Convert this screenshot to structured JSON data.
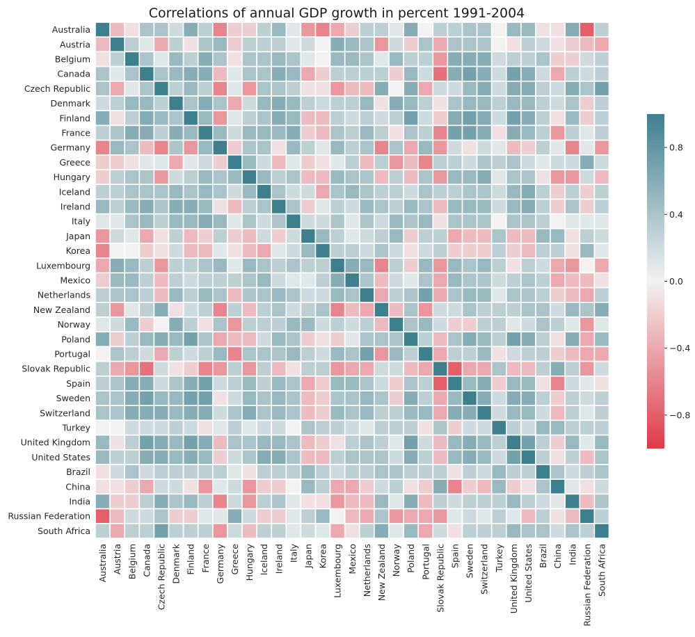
{
  "chart_data": {
    "type": "heatmap",
    "title": "Correlations of annual GDP growth in percent 1991-2004",
    "xlabel": "",
    "ylabel": "",
    "labels": [
      "Australia",
      "Austria",
      "Belgium",
      "Canada",
      "Czech Republic",
      "Denmark",
      "Finland",
      "France",
      "Germany",
      "Greece",
      "Hungary",
      "Iceland",
      "Ireland",
      "Italy",
      "Japan",
      "Korea",
      "Luxembourg",
      "Mexico",
      "Netherlands",
      "New Zealand",
      "Norway",
      "Poland",
      "Portugal",
      "Slovak Republic",
      "Spain",
      "Sweden",
      "Switzerland",
      "Turkey",
      "United Kingdom",
      "United States",
      "Brazil",
      "China",
      "India",
      "Russian Federation",
      "South Africa"
    ],
    "value_range": [
      -1,
      1
    ],
    "colorbar": {
      "ticks": [
        0.8,
        0.4,
        0.0,
        -0.4,
        -0.8
      ],
      "tick_labels": [
        "0.8",
        "0.4",
        "0.0",
        "−0.4",
        "−0.8"
      ]
    },
    "colors": {
      "positive": "#3e7f8e",
      "neutral": "#f2f2f2",
      "negative": "#e03a48",
      "grid": "#ffffff"
    },
    "matrix": [
      [
        1.0,
        -0.3,
        -0.1,
        0.4,
        0.4,
        0.2,
        0.6,
        0.3,
        -0.6,
        -0.2,
        -0.2,
        0.3,
        0.5,
        0.1,
        -0.5,
        -0.6,
        -0.4,
        -0.2,
        0.3,
        0.3,
        0.1,
        0.6,
        0.0,
        0.3,
        0.3,
        0.4,
        0.4,
        0.0,
        0.5,
        0.5,
        -0.1,
        -0.1,
        0.6,
        -0.8,
        0.3
      ],
      [
        -0.3,
        1.0,
        0.3,
        0.1,
        -0.4,
        0.3,
        -0.1,
        0.4,
        0.5,
        -0.2,
        0.3,
        0.3,
        0.3,
        0.1,
        0.2,
        0.0,
        0.6,
        0.5,
        0.4,
        -0.5,
        0.2,
        -0.2,
        0.4,
        -0.4,
        0.4,
        0.4,
        0.4,
        0.0,
        -0.1,
        0.3,
        0.2,
        -0.1,
        -0.2,
        -0.3,
        -0.4
      ],
      [
        -0.1,
        0.3,
        1.0,
        0.4,
        0.1,
        0.5,
        0.3,
        0.6,
        0.4,
        -0.1,
        0.4,
        0.4,
        0.5,
        0.4,
        0.1,
        0.0,
        0.5,
        0.5,
        0.4,
        0.1,
        0.5,
        0.3,
        0.3,
        -0.5,
        0.6,
        0.6,
        0.6,
        0.2,
        0.3,
        0.3,
        0.4,
        -0.2,
        -0.2,
        0.2,
        0.3
      ],
      [
        0.4,
        0.1,
        0.4,
        1.0,
        0.4,
        0.5,
        0.6,
        0.6,
        -0.3,
        0.1,
        0.4,
        0.4,
        0.6,
        0.5,
        -0.4,
        -0.2,
        0.3,
        0.3,
        0.3,
        0.3,
        -0.2,
        0.5,
        0.2,
        -0.7,
        0.6,
        0.7,
        0.6,
        0.2,
        0.7,
        0.6,
        0.2,
        -0.4,
        0.3,
        0.2,
        0.3
      ],
      [
        0.4,
        -0.4,
        0.1,
        0.4,
        1.0,
        0.3,
        0.5,
        0.3,
        -0.6,
        0.1,
        -0.5,
        0.4,
        0.4,
        0.3,
        -0.1,
        -0.1,
        -0.5,
        -0.3,
        -0.3,
        0.6,
        0.0,
        0.6,
        -0.4,
        0.2,
        0.2,
        0.5,
        0.6,
        0.2,
        0.6,
        0.6,
        0.3,
        0.2,
        0.6,
        0.4,
        0.7
      ],
      [
        0.2,
        0.3,
        0.5,
        0.5,
        0.3,
        1.0,
        0.4,
        0.6,
        0.4,
        -0.4,
        0.2,
        0.5,
        0.6,
        0.5,
        0.3,
        0.2,
        0.3,
        0.3,
        0.5,
        -0.1,
        0.6,
        0.5,
        0.3,
        -0.1,
        0.4,
        0.5,
        0.5,
        0.3,
        0.5,
        0.5,
        0.3,
        0.2,
        0.4,
        -0.2,
        0.3
      ],
      [
        0.6,
        -0.1,
        0.3,
        0.6,
        0.5,
        0.4,
        1.0,
        0.5,
        -0.5,
        0.1,
        0.3,
        0.4,
        0.6,
        0.5,
        -0.3,
        -0.3,
        0.3,
        0.2,
        0.3,
        0.2,
        0.3,
        0.7,
        0.2,
        -0.2,
        0.6,
        0.7,
        0.6,
        0.2,
        0.7,
        0.6,
        0.3,
        -0.1,
        0.5,
        -0.2,
        0.3
      ],
      [
        0.3,
        0.4,
        0.6,
        0.6,
        0.3,
        0.6,
        0.5,
        1.0,
        0.5,
        0.2,
        0.5,
        0.5,
        0.5,
        0.6,
        -0.2,
        -0.3,
        0.4,
        0.3,
        0.5,
        0.3,
        -0.1,
        0.4,
        0.3,
        -0.6,
        0.7,
        0.7,
        0.6,
        -0.1,
        0.6,
        0.5,
        0.3,
        -0.5,
        0.3,
        0.1,
        0.3
      ],
      [
        -0.6,
        0.5,
        0.4,
        -0.3,
        -0.6,
        0.4,
        -0.5,
        0.5,
        1.0,
        -0.2,
        0.4,
        0.4,
        -0.1,
        0.5,
        0.3,
        0.1,
        0.5,
        0.3,
        0.4,
        -0.6,
        0.4,
        -0.4,
        0.5,
        -0.5,
        0.2,
        -0.1,
        0.2,
        0.1,
        -0.3,
        -0.2,
        0.3,
        0.1,
        -0.6,
        0.1,
        -0.5
      ],
      [
        -0.2,
        -0.2,
        -0.1,
        0.1,
        0.1,
        -0.4,
        0.1,
        0.2,
        -0.2,
        1.0,
        0.5,
        0.2,
        -0.3,
        0.1,
        -0.2,
        -0.1,
        0.1,
        0.3,
        -0.3,
        0.3,
        -0.5,
        -0.3,
        -0.6,
        0.3,
        0.3,
        0.2,
        0.4,
        0.3,
        0.4,
        0.2,
        0.1,
        0.2,
        0.2,
        0.6,
        0.2
      ],
      [
        -0.2,
        0.3,
        0.4,
        0.4,
        -0.5,
        0.2,
        0.3,
        0.5,
        0.4,
        0.5,
        1.0,
        0.5,
        0.3,
        0.4,
        -0.3,
        -0.3,
        0.5,
        0.4,
        0.4,
        -0.3,
        0.3,
        -0.3,
        0.4,
        -0.5,
        0.5,
        0.5,
        0.6,
        0.1,
        0.4,
        0.4,
        -0.1,
        -0.5,
        -0.5,
        0.2,
        -0.3
      ],
      [
        0.3,
        0.3,
        0.4,
        0.4,
        0.4,
        0.5,
        0.4,
        0.5,
        0.4,
        0.2,
        0.5,
        1.0,
        0.4,
        0.2,
        0.2,
        -0.4,
        0.4,
        0.5,
        0.4,
        0.3,
        0.3,
        0.2,
        0.4,
        0.3,
        0.3,
        0.4,
        0.4,
        0.2,
        0.5,
        0.6,
        0.3,
        -0.2,
        0.3,
        -0.2,
        0.3
      ],
      [
        0.5,
        0.3,
        0.5,
        0.6,
        0.4,
        0.6,
        0.6,
        0.5,
        -0.1,
        -0.3,
        0.3,
        0.4,
        1.0,
        0.4,
        -0.2,
        0.1,
        0.3,
        0.2,
        0.5,
        0.4,
        0.3,
        0.5,
        0.4,
        -0.3,
        0.5,
        0.5,
        0.5,
        0.2,
        0.5,
        0.6,
        0.3,
        -0.2,
        0.4,
        -0.2,
        0.3
      ],
      [
        0.1,
        0.1,
        0.4,
        0.5,
        0.3,
        0.5,
        0.5,
        0.6,
        0.5,
        0.1,
        0.4,
        0.2,
        0.4,
        1.0,
        0.2,
        0.2,
        0.4,
        0.1,
        0.4,
        0.2,
        0.5,
        0.4,
        0.5,
        -0.1,
        0.4,
        0.4,
        0.4,
        0.0,
        0.4,
        0.4,
        0.3,
        0.0,
        0.1,
        0.1,
        0.1
      ],
      [
        -0.5,
        0.2,
        0.1,
        -0.4,
        -0.1,
        0.3,
        -0.3,
        -0.2,
        0.3,
        -0.2,
        -0.3,
        0.2,
        -0.2,
        0.2,
        1.0,
        0.5,
        0.3,
        0.1,
        0.2,
        0.3,
        0.5,
        -0.2,
        0.3,
        0.3,
        -0.4,
        -0.3,
        -0.3,
        0.4,
        -0.3,
        -0.3,
        0.5,
        0.5,
        -0.1,
        0.3,
        0.2
      ],
      [
        -0.6,
        0.0,
        0.0,
        -0.2,
        -0.1,
        0.2,
        -0.3,
        -0.3,
        0.1,
        -0.1,
        -0.3,
        -0.4,
        0.1,
        0.2,
        0.5,
        1.0,
        0.3,
        0.3,
        0.2,
        0.4,
        0.2,
        -0.1,
        0.2,
        0.3,
        -0.2,
        -0.2,
        -0.2,
        0.3,
        -0.2,
        -0.3,
        0.3,
        0.3,
        -0.1,
        0.5,
        0.1
      ],
      [
        -0.4,
        0.6,
        0.5,
        0.3,
        -0.5,
        0.3,
        0.3,
        0.4,
        0.5,
        0.1,
        0.5,
        0.4,
        0.3,
        0.4,
        0.3,
        0.3,
        1.0,
        0.6,
        0.5,
        -0.6,
        0.3,
        -0.2,
        0.5,
        -0.5,
        0.5,
        0.4,
        0.5,
        0.3,
        -0.1,
        0.3,
        0.2,
        -0.4,
        -0.5,
        0.0,
        -0.4
      ],
      [
        -0.2,
        0.5,
        0.5,
        0.3,
        -0.3,
        0.3,
        0.2,
        0.3,
        0.3,
        0.3,
        0.4,
        0.5,
        0.2,
        0.1,
        0.1,
        0.3,
        0.6,
        1.0,
        0.4,
        -0.3,
        0.2,
        0.1,
        0.4,
        -0.4,
        0.5,
        0.4,
        0.4,
        0.2,
        0.3,
        0.4,
        0.3,
        -0.4,
        -0.3,
        -0.3,
        -0.1
      ],
      [
        0.3,
        0.4,
        0.4,
        0.3,
        -0.3,
        0.5,
        0.3,
        0.5,
        0.4,
        -0.3,
        0.4,
        0.4,
        0.5,
        0.4,
        0.2,
        0.2,
        0.5,
        0.4,
        1.0,
        -0.4,
        0.3,
        0.4,
        0.7,
        -0.4,
        0.4,
        0.5,
        0.5,
        0.1,
        0.4,
        0.4,
        0.3,
        -0.2,
        -0.3,
        -0.4,
        0.3
      ],
      [
        0.3,
        -0.5,
        0.1,
        0.3,
        0.6,
        -0.1,
        0.2,
        0.3,
        -0.6,
        0.3,
        -0.3,
        0.3,
        0.4,
        0.2,
        0.3,
        0.4,
        -0.6,
        -0.3,
        -0.4,
        1.0,
        -0.3,
        0.4,
        -0.5,
        0.2,
        0.2,
        0.4,
        0.3,
        0.3,
        0.3,
        0.4,
        0.4,
        0.2,
        0.5,
        0.4,
        0.6
      ],
      [
        0.1,
        0.2,
        0.5,
        -0.2,
        0.0,
        0.6,
        0.3,
        -0.1,
        0.4,
        -0.5,
        0.3,
        0.3,
        0.3,
        0.5,
        0.5,
        0.2,
        0.3,
        0.2,
        0.3,
        -0.3,
        1.0,
        0.4,
        0.5,
        0.2,
        -0.2,
        -0.2,
        0.3,
        0.3,
        0.1,
        0.2,
        0.4,
        0.3,
        0.1,
        -0.5,
        0.1
      ],
      [
        0.6,
        -0.2,
        0.3,
        0.5,
        0.6,
        0.5,
        0.7,
        0.4,
        -0.4,
        -0.3,
        -0.3,
        0.2,
        0.5,
        0.4,
        -0.2,
        -0.1,
        -0.2,
        0.1,
        0.4,
        0.4,
        0.4,
        1.0,
        0.3,
        -0.3,
        0.4,
        0.6,
        0.5,
        0.3,
        0.7,
        0.6,
        0.3,
        -0.1,
        0.6,
        -0.4,
        0.5
      ],
      [
        0.0,
        0.4,
        0.3,
        0.2,
        -0.4,
        0.3,
        0.2,
        0.3,
        0.5,
        -0.6,
        0.4,
        0.4,
        0.4,
        0.5,
        0.3,
        0.2,
        0.5,
        0.4,
        0.7,
        -0.5,
        0.5,
        0.3,
        1.0,
        -0.4,
        0.3,
        0.3,
        0.5,
        -0.1,
        0.2,
        0.3,
        0.3,
        -0.2,
        -0.3,
        -0.4,
        -0.4
      ],
      [
        0.3,
        -0.4,
        -0.5,
        -0.7,
        0.2,
        -0.1,
        -0.2,
        -0.6,
        -0.5,
        0.3,
        -0.5,
        0.3,
        -0.3,
        -0.1,
        0.3,
        0.3,
        -0.5,
        -0.4,
        -0.4,
        0.2,
        0.2,
        -0.3,
        -0.4,
        1.0,
        -0.8,
        -0.4,
        -0.4,
        0.4,
        -0.3,
        -0.3,
        0.3,
        0.6,
        0.3,
        -0.5,
        0.2
      ],
      [
        0.3,
        0.4,
        0.6,
        0.6,
        0.2,
        0.4,
        0.6,
        0.7,
        0.2,
        0.3,
        0.5,
        0.3,
        0.5,
        0.4,
        -0.4,
        -0.2,
        0.5,
        0.5,
        0.4,
        0.2,
        -0.2,
        0.4,
        0.3,
        -0.8,
        1.0,
        0.5,
        0.6,
        -0.2,
        0.5,
        0.5,
        -0.1,
        -0.6,
        0.2,
        0.1,
        -0.1
      ],
      [
        0.4,
        0.4,
        0.6,
        0.7,
        0.5,
        0.5,
        0.7,
        0.7,
        -0.1,
        0.2,
        0.5,
        0.4,
        0.5,
        0.4,
        -0.3,
        -0.2,
        0.4,
        0.4,
        0.5,
        0.4,
        -0.2,
        0.6,
        0.3,
        -0.4,
        0.5,
        1.0,
        0.6,
        0.2,
        0.6,
        0.6,
        0.3,
        -0.2,
        0.3,
        0.2,
        0.3
      ],
      [
        0.4,
        0.4,
        0.6,
        0.6,
        0.6,
        0.5,
        0.6,
        0.6,
        0.2,
        0.4,
        0.6,
        0.4,
        0.5,
        0.4,
        -0.3,
        -0.2,
        0.5,
        0.4,
        0.5,
        0.3,
        0.3,
        0.5,
        0.5,
        -0.4,
        0.6,
        0.6,
        1.0,
        0.2,
        0.5,
        0.5,
        0.2,
        -0.3,
        0.3,
        0.1,
        0.3
      ],
      [
        0.0,
        0.0,
        0.2,
        0.2,
        0.2,
        0.3,
        0.2,
        -0.1,
        0.1,
        0.3,
        0.1,
        0.2,
        0.2,
        0.0,
        0.4,
        0.3,
        0.3,
        0.2,
        0.1,
        0.3,
        0.3,
        0.3,
        -0.1,
        0.4,
        -0.2,
        0.2,
        0.2,
        1.0,
        0.3,
        0.2,
        0.5,
        0.5,
        0.3,
        0.3,
        0.3
      ],
      [
        0.5,
        -0.1,
        0.3,
        0.7,
        0.6,
        0.5,
        0.7,
        0.6,
        -0.3,
        0.4,
        0.4,
        0.5,
        0.5,
        0.4,
        -0.3,
        -0.2,
        -0.1,
        0.3,
        0.4,
        0.3,
        0.1,
        0.7,
        0.2,
        -0.3,
        0.5,
        0.6,
        0.5,
        0.3,
        1.0,
        0.7,
        0.3,
        -0.2,
        0.5,
        0.1,
        0.5
      ],
      [
        0.5,
        0.3,
        0.3,
        0.6,
        0.6,
        0.5,
        0.6,
        0.5,
        -0.2,
        0.2,
        0.4,
        0.6,
        0.6,
        0.4,
        -0.3,
        -0.3,
        0.3,
        0.4,
        0.4,
        0.4,
        0.2,
        0.6,
        0.3,
        -0.3,
        0.5,
        0.6,
        0.5,
        0.2,
        0.7,
        1.0,
        0.3,
        -0.1,
        0.3,
        -0.3,
        0.4
      ],
      [
        -0.1,
        0.2,
        0.4,
        0.2,
        0.3,
        0.3,
        0.3,
        0.3,
        0.3,
        0.1,
        -0.1,
        0.3,
        0.3,
        0.3,
        0.5,
        0.3,
        0.2,
        0.3,
        0.3,
        0.4,
        0.4,
        0.3,
        0.3,
        0.3,
        -0.1,
        0.3,
        0.2,
        0.5,
        0.3,
        0.3,
        1.0,
        0.4,
        0.2,
        0.3,
        0.4
      ],
      [
        -0.1,
        -0.1,
        -0.2,
        -0.4,
        0.2,
        0.2,
        -0.1,
        -0.5,
        0.1,
        0.2,
        -0.5,
        -0.2,
        -0.2,
        0.0,
        0.5,
        0.3,
        -0.4,
        -0.4,
        -0.2,
        0.2,
        0.3,
        -0.1,
        -0.2,
        0.6,
        -0.6,
        -0.2,
        -0.3,
        0.5,
        -0.2,
        -0.1,
        0.4,
        1.0,
        0.1,
        -0.1,
        0.2
      ],
      [
        0.6,
        -0.2,
        -0.2,
        0.3,
        0.6,
        0.4,
        0.5,
        0.3,
        -0.6,
        0.2,
        -0.5,
        0.3,
        0.4,
        0.1,
        -0.1,
        -0.1,
        -0.5,
        -0.3,
        -0.3,
        0.5,
        0.1,
        0.6,
        -0.3,
        0.3,
        0.2,
        0.3,
        0.3,
        0.3,
        0.5,
        0.3,
        0.2,
        0.1,
        1.0,
        -0.3,
        0.4
      ],
      [
        -0.8,
        -0.3,
        0.2,
        0.2,
        0.4,
        -0.2,
        -0.2,
        0.1,
        0.1,
        0.6,
        0.2,
        -0.2,
        -0.2,
        0.1,
        0.3,
        0.5,
        0.0,
        -0.3,
        -0.4,
        0.4,
        -0.5,
        -0.4,
        -0.4,
        -0.5,
        0.1,
        0.2,
        0.1,
        0.3,
        0.1,
        -0.3,
        0.3,
        -0.1,
        -0.3,
        1.0,
        0.3
      ],
      [
        0.3,
        -0.4,
        0.3,
        0.3,
        0.7,
        0.3,
        0.3,
        0.3,
        -0.5,
        0.2,
        -0.3,
        0.3,
        0.3,
        0.1,
        0.2,
        0.1,
        -0.4,
        -0.1,
        0.3,
        0.6,
        0.1,
        0.5,
        -0.4,
        0.2,
        -0.1,
        0.3,
        0.3,
        0.3,
        0.5,
        0.4,
        0.4,
        0.2,
        0.4,
        0.3,
        1.0
      ]
    ]
  }
}
